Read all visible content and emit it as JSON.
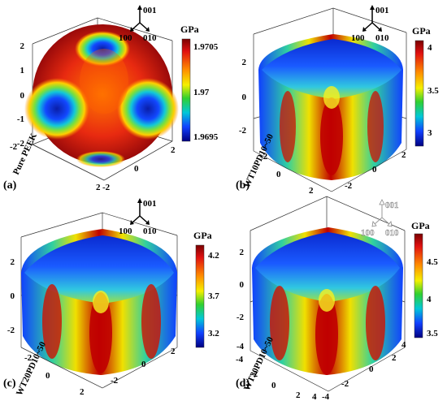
{
  "unit": "GPa",
  "axis_labels": {
    "z": "001",
    "x": "100",
    "y": "010"
  },
  "panels": [
    {
      "id": "a",
      "label": "(a)",
      "sample": "Pure PEEK",
      "shape": "sphere",
      "colorbar_ticks": [
        "1.9705",
        "1.97",
        "1.9695"
      ],
      "z_ticks": [
        "2",
        "1",
        "0",
        "-1",
        "-2"
      ],
      "x_ticks": [
        "-2",
        "0",
        "2"
      ],
      "y_ticks": [
        "-2",
        "0",
        "2"
      ],
      "triad_style": "solid"
    },
    {
      "id": "b",
      "label": "(b)",
      "sample": "WT10PD10~50",
      "shape": "cube",
      "colorbar_ticks": [
        "4",
        "3.5",
        "3"
      ],
      "z_ticks": [
        "2",
        "0",
        "-2"
      ],
      "x_ticks": [
        "-2",
        "0",
        "2"
      ],
      "y_ticks": [
        "-2",
        "0",
        "2"
      ],
      "triad_style": "solid"
    },
    {
      "id": "c",
      "label": "(c)",
      "sample": "WT20PD10~50",
      "shape": "cube",
      "colorbar_ticks": [
        "4.2",
        "3.7",
        "3.2"
      ],
      "z_ticks": [
        "2",
        "0",
        "-2"
      ],
      "x_ticks": [
        "-2",
        "0",
        "2"
      ],
      "y_ticks": [
        "-2",
        "0",
        "2"
      ],
      "triad_style": "solid"
    },
    {
      "id": "d",
      "label": "(d)",
      "sample": "WT30PD10~50",
      "shape": "cube",
      "colorbar_ticks": [
        "4.5",
        "4",
        "3.5"
      ],
      "z_ticks": [
        "2",
        "0",
        "-2",
        "-4"
      ],
      "x_ticks": [
        "-4",
        "-2",
        "0",
        "2",
        "4"
      ],
      "y_ticks": [
        "-4",
        "-2",
        "0",
        "2",
        "4"
      ],
      "triad_style": "outline"
    }
  ]
}
